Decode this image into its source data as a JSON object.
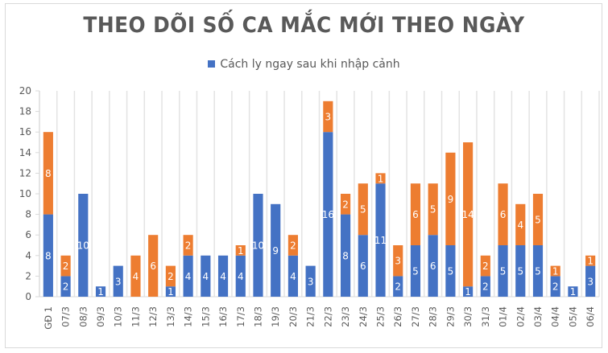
{
  "chart_data": {
    "type": "bar",
    "stacked": true,
    "title": "THEO DÕI SỐ CA MẮC MỚI THEO NGÀY",
    "xlabel": "",
    "ylabel": "",
    "ylim": [
      0,
      20
    ],
    "yticks": [
      0,
      2,
      4,
      6,
      8,
      10,
      12,
      14,
      16,
      18,
      20
    ],
    "grid": {
      "vertical": true,
      "horizontal": false
    },
    "legend_position": "top",
    "categories": [
      "GĐ 1",
      "07/3",
      "08/3",
      "09/3",
      "10/3",
      "11/3",
      "12/3",
      "13/3",
      "14/3",
      "15/3",
      "16/3",
      "17/3",
      "18/3",
      "19/3",
      "20/3",
      "21/3",
      "22/3",
      "23/3",
      "24/3",
      "25/3",
      "26/3",
      "27/3",
      "28/3",
      "29/3",
      "30/3",
      "31/3",
      "01/4",
      "02/4",
      "03/4",
      "04/4",
      "05/4",
      "06/4"
    ],
    "series": [
      {
        "name": "Cách ly ngay sau khi nhập cảnh",
        "color": "#4472c4",
        "values": [
          8,
          2,
          10,
          1,
          3,
          0,
          0,
          1,
          4,
          4,
          4,
          4,
          10,
          9,
          4,
          3,
          16,
          8,
          6,
          11,
          2,
          5,
          6,
          5,
          1,
          2,
          5,
          5,
          5,
          2,
          1,
          3
        ]
      },
      {
        "name": "",
        "color": "#ed7d31",
        "values": [
          8,
          2,
          0,
          0,
          0,
          4,
          6,
          2,
          2,
          0,
          0,
          1,
          0,
          0,
          2,
          0,
          3,
          2,
          5,
          1,
          3,
          6,
          5,
          9,
          14,
          2,
          6,
          4,
          5,
          1,
          0,
          1
        ]
      }
    ]
  },
  "header": {
    "title": "THEO DÕI SỐ CA MẮC MỚI THEO NGÀY"
  },
  "legend": {
    "items": [
      {
        "label": "Cách ly ngay sau khi nhập cảnh",
        "color": "#4472c4"
      }
    ]
  }
}
